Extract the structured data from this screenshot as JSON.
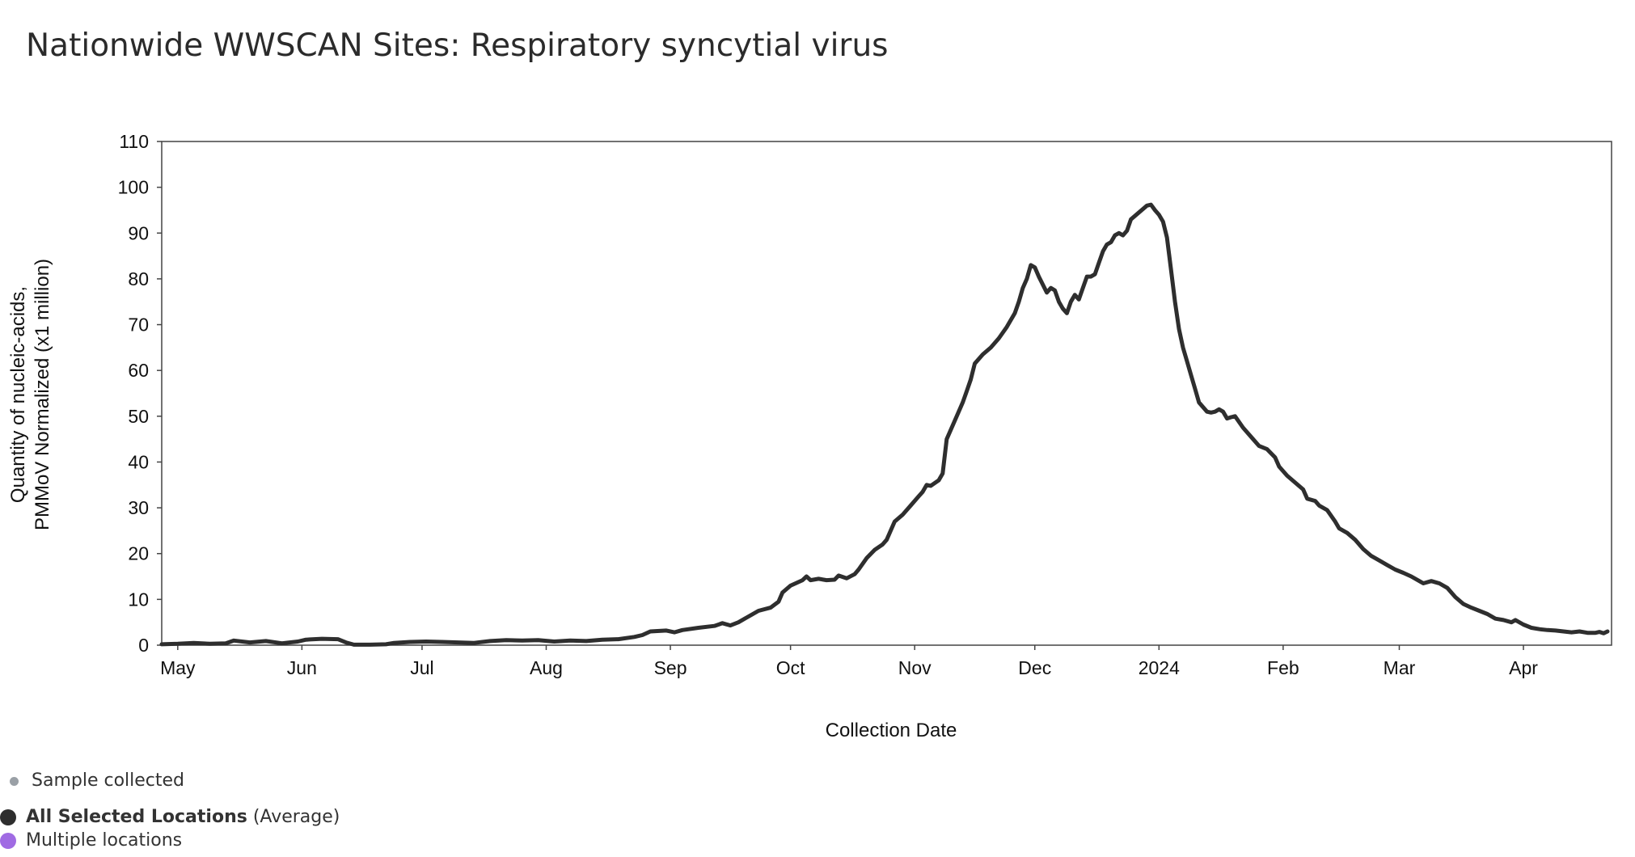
{
  "page_title": "Nationwide WWSCAN Sites: Respiratory syncytial virus",
  "legend": {
    "sample_collected": "Sample collected",
    "all_selected_bold": "All Selected Locations",
    "all_selected_suffix": "(Average)",
    "multiple_locations": "Multiple locations"
  },
  "chart_data": {
    "type": "line",
    "xlabel": "Collection Date",
    "ylabel_line1": "Quantity of nucleic-acids,",
    "ylabel_line2": "PMMoV Normalized (x1 million)",
    "ylim": [
      0,
      110
    ],
    "yticks": [
      0,
      10,
      20,
      30,
      40,
      50,
      60,
      70,
      80,
      90,
      100,
      110
    ],
    "xlim_days": [
      -4,
      358
    ],
    "xticks": [
      {
        "label": "May",
        "day": 0
      },
      {
        "label": "Jun",
        "day": 31
      },
      {
        "label": "Jul",
        "day": 61
      },
      {
        "label": "Aug",
        "day": 92
      },
      {
        "label": "Sep",
        "day": 123
      },
      {
        "label": "Oct",
        "day": 153
      },
      {
        "label": "Nov",
        "day": 184
      },
      {
        "label": "Dec",
        "day": 214
      },
      {
        "label": "2024",
        "day": 245
      },
      {
        "label": "Feb",
        "day": 276
      },
      {
        "label": "Mar",
        "day": 305
      },
      {
        "label": "Apr",
        "day": 336
      }
    ],
    "series": [
      {
        "name": "All Selected Locations (Average)",
        "color": "#2e2e2e",
        "points": [
          [
            -4,
            0.2
          ],
          [
            0,
            0.3
          ],
          [
            4,
            0.5
          ],
          [
            8,
            0.3
          ],
          [
            12,
            0.4
          ],
          [
            14,
            1.0
          ],
          [
            18,
            0.6
          ],
          [
            22,
            0.9
          ],
          [
            26,
            0.4
          ],
          [
            30,
            0.8
          ],
          [
            32,
            1.2
          ],
          [
            36,
            1.4
          ],
          [
            40,
            1.3
          ],
          [
            42,
            0.6
          ],
          [
            44,
            0.1
          ],
          [
            48,
            0.1
          ],
          [
            52,
            0.2
          ],
          [
            54,
            0.5
          ],
          [
            58,
            0.7
          ],
          [
            62,
            0.8
          ],
          [
            66,
            0.7
          ],
          [
            70,
            0.6
          ],
          [
            74,
            0.5
          ],
          [
            78,
            0.9
          ],
          [
            82,
            1.1
          ],
          [
            86,
            1.0
          ],
          [
            90,
            1.1
          ],
          [
            94,
            0.8
          ],
          [
            98,
            1.0
          ],
          [
            102,
            0.9
          ],
          [
            106,
            1.2
          ],
          [
            110,
            1.3
          ],
          [
            114,
            1.8
          ],
          [
            116,
            2.2
          ],
          [
            118,
            3.0
          ],
          [
            122,
            3.2
          ],
          [
            124,
            2.8
          ],
          [
            126,
            3.3
          ],
          [
            130,
            3.8
          ],
          [
            134,
            4.2
          ],
          [
            136,
            4.8
          ],
          [
            138,
            4.3
          ],
          [
            140,
            5.0
          ],
          [
            142,
            6.0
          ],
          [
            145,
            7.5
          ],
          [
            148,
            8.2
          ],
          [
            150,
            9.5
          ],
          [
            151,
            11.5
          ],
          [
            153,
            13.0
          ],
          [
            156,
            14.2
          ],
          [
            157,
            15.0
          ],
          [
            158,
            14.2
          ],
          [
            160,
            14.5
          ],
          [
            162,
            14.2
          ],
          [
            164,
            14.3
          ],
          [
            165,
            15.2
          ],
          [
            167,
            14.6
          ],
          [
            169,
            15.5
          ],
          [
            170,
            16.5
          ],
          [
            172,
            19.0
          ],
          [
            174,
            20.8
          ],
          [
            176,
            22.0
          ],
          [
            177,
            23.0
          ],
          [
            179,
            27.0
          ],
          [
            181,
            28.5
          ],
          [
            183,
            30.5
          ],
          [
            185,
            32.5
          ],
          [
            186,
            33.5
          ],
          [
            187,
            35.0
          ],
          [
            188,
            34.8
          ],
          [
            190,
            36.0
          ],
          [
            191,
            37.5
          ],
          [
            192,
            45.0
          ],
          [
            194,
            49.0
          ],
          [
            196,
            53.0
          ],
          [
            197,
            55.5
          ],
          [
            198,
            58.0
          ],
          [
            199,
            61.5
          ],
          [
            201,
            63.5
          ],
          [
            203,
            65.0
          ],
          [
            205,
            67.0
          ],
          [
            207,
            69.5
          ],
          [
            209,
            72.5
          ],
          [
            210,
            75.0
          ],
          [
            211,
            78.0
          ],
          [
            212,
            80.0
          ],
          [
            213,
            83.0
          ],
          [
            214,
            82.5
          ],
          [
            215,
            80.5
          ],
          [
            217,
            77.0
          ],
          [
            218,
            78.0
          ],
          [
            219,
            77.5
          ],
          [
            220,
            75.0
          ],
          [
            221,
            73.5
          ],
          [
            222,
            72.5
          ],
          [
            223,
            75.0
          ],
          [
            224,
            76.5
          ],
          [
            225,
            75.5
          ],
          [
            226,
            78.0
          ],
          [
            227,
            80.5
          ],
          [
            228,
            80.5
          ],
          [
            229,
            81.0
          ],
          [
            230,
            83.5
          ],
          [
            231,
            86.0
          ],
          [
            232,
            87.5
          ],
          [
            233,
            88.0
          ],
          [
            234,
            89.5
          ],
          [
            235,
            90.0
          ],
          [
            236,
            89.5
          ],
          [
            237,
            90.5
          ],
          [
            238,
            93.0
          ],
          [
            240,
            94.5
          ],
          [
            242,
            96.0
          ],
          [
            243,
            96.2
          ],
          [
            244,
            95.0
          ],
          [
            245,
            94.0
          ],
          [
            246,
            92.5
          ],
          [
            247,
            89.0
          ],
          [
            248,
            82.0
          ],
          [
            249,
            75.0
          ],
          [
            250,
            69.0
          ],
          [
            251,
            65.0
          ],
          [
            252,
            62.0
          ],
          [
            253,
            59.0
          ],
          [
            254,
            56.0
          ],
          [
            255,
            53.0
          ],
          [
            257,
            51.0
          ],
          [
            258,
            50.8
          ],
          [
            259,
            51.0
          ],
          [
            260,
            51.5
          ],
          [
            261,
            51.0
          ],
          [
            262,
            49.5
          ],
          [
            263,
            49.8
          ],
          [
            264,
            50.0
          ],
          [
            266,
            47.5
          ],
          [
            268,
            45.5
          ],
          [
            270,
            43.5
          ],
          [
            272,
            42.8
          ],
          [
            274,
            41.0
          ],
          [
            275,
            39.0
          ],
          [
            277,
            37.0
          ],
          [
            279,
            35.5
          ],
          [
            281,
            34.0
          ],
          [
            282,
            32.0
          ],
          [
            284,
            31.5
          ],
          [
            285,
            30.5
          ],
          [
            287,
            29.5
          ],
          [
            289,
            27.0
          ],
          [
            290,
            25.5
          ],
          [
            292,
            24.5
          ],
          [
            294,
            23.0
          ],
          [
            296,
            21.0
          ],
          [
            298,
            19.5
          ],
          [
            300,
            18.5
          ],
          [
            302,
            17.5
          ],
          [
            304,
            16.5
          ],
          [
            306,
            15.8
          ],
          [
            308,
            15.0
          ],
          [
            310,
            14.0
          ],
          [
            311,
            13.5
          ],
          [
            313,
            14.0
          ],
          [
            315,
            13.5
          ],
          [
            317,
            12.5
          ],
          [
            319,
            10.5
          ],
          [
            321,
            9.0
          ],
          [
            323,
            8.2
          ],
          [
            325,
            7.5
          ],
          [
            327,
            6.8
          ],
          [
            329,
            5.8
          ],
          [
            331,
            5.5
          ],
          [
            333,
            5.0
          ],
          [
            334,
            5.5
          ],
          [
            336,
            4.5
          ],
          [
            338,
            3.8
          ],
          [
            340,
            3.5
          ],
          [
            342,
            3.3
          ],
          [
            344,
            3.2
          ],
          [
            346,
            3.0
          ],
          [
            348,
            2.8
          ],
          [
            350,
            3.0
          ],
          [
            352,
            2.7
          ],
          [
            354,
            2.7
          ],
          [
            355,
            2.9
          ],
          [
            356,
            2.6
          ],
          [
            357,
            3.0
          ]
        ]
      }
    ]
  }
}
